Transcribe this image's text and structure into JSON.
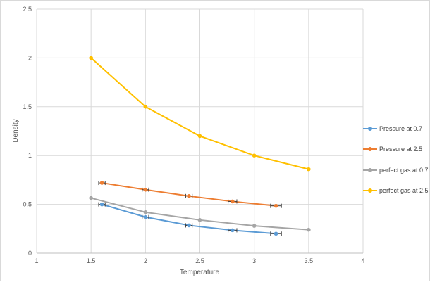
{
  "chart_data": {
    "type": "line",
    "title": "",
    "xlabel": "Temperature",
    "ylabel": "Density",
    "xlim": [
      1,
      4
    ],
    "ylim": [
      0,
      2.5
    ],
    "x_ticks": [
      "1",
      "1.5",
      "2",
      "2.5",
      "3",
      "3.5",
      "4"
    ],
    "y_ticks": [
      "0",
      "0.5",
      "1",
      "1.5",
      "2",
      "2.5"
    ],
    "grid": true,
    "legend_position": "right",
    "series": [
      {
        "name": "Pressure at 0.7",
        "color": "#5b9bd5",
        "x": [
          1.6,
          2.0,
          2.4,
          2.8,
          3.2
        ],
        "y": [
          0.5,
          0.37,
          0.285,
          0.235,
          0.2
        ],
        "x_error": [
          0.03,
          0.03,
          0.03,
          0.04,
          0.05
        ]
      },
      {
        "name": "Pressure at 2.5",
        "color": "#ed7d31",
        "x": [
          1.6,
          2.0,
          2.4,
          2.8,
          3.2
        ],
        "y": [
          0.72,
          0.65,
          0.585,
          0.53,
          0.485
        ],
        "x_error": [
          0.03,
          0.03,
          0.03,
          0.04,
          0.05
        ]
      },
      {
        "name": "perfect gas at 0.7",
        "color": "#a5a5a5",
        "x": [
          1.5,
          2.0,
          2.5,
          3.0,
          3.5
        ],
        "y": [
          0.565,
          0.42,
          0.34,
          0.28,
          0.24
        ]
      },
      {
        "name": "perfect gas at 2.5",
        "color": "#ffc000",
        "x": [
          1.5,
          2.0,
          2.5,
          3.0,
          3.5
        ],
        "y": [
          2.0,
          1.5,
          1.2,
          1.0,
          0.86
        ]
      }
    ]
  }
}
